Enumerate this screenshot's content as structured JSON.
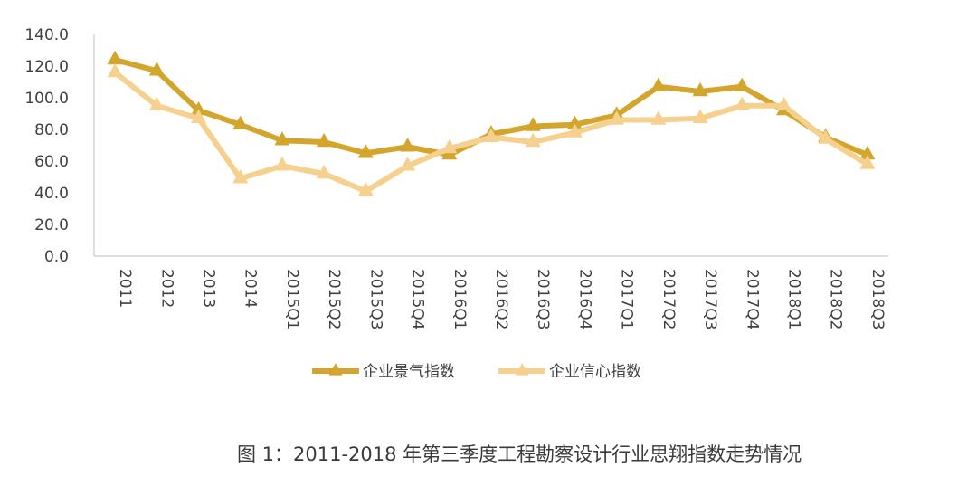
{
  "caption": "图 1：2011-2018 年第三季度工程勘察设计行业思翔指数走势情况",
  "chart_data": {
    "type": "line",
    "categories": [
      "2011",
      "2012",
      "2013",
      "2014",
      "2015Q1",
      "2015Q2",
      "2015Q3",
      "2015Q4",
      "2016Q1",
      "2016Q2",
      "2016Q3",
      "2016Q4",
      "2017Q1",
      "2017Q2",
      "2017Q3",
      "2017Q4",
      "2018Q1",
      "2018Q2",
      "2018Q3"
    ],
    "ylim": [
      0,
      140
    ],
    "yticks": [
      "0.0",
      "20.0",
      "40.0",
      "60.0",
      "80.0",
      "100.0",
      "120.0",
      "140.0"
    ],
    "grid": false,
    "legend_position": "bottom",
    "series": [
      {
        "name": "企业景气指数",
        "color": "#D4A52C",
        "values": [
          124,
          117,
          92,
          83,
          73,
          72,
          65,
          69,
          64,
          77,
          82,
          83,
          89,
          107,
          104,
          107,
          92,
          75,
          64
        ]
      },
      {
        "name": "企业信心指数",
        "color": "#F5D08E",
        "values": [
          116,
          95,
          87,
          49,
          57,
          52,
          41,
          57,
          68,
          75,
          72,
          78,
          86,
          86,
          87,
          95,
          95,
          74,
          58
        ]
      }
    ]
  }
}
